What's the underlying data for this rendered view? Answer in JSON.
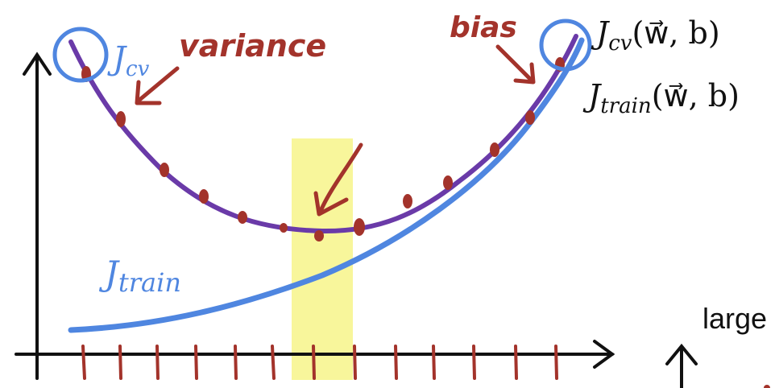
{
  "labels": {
    "jcv_marker": "J",
    "jcv_marker_sub": "cv",
    "variance": "variance",
    "bias": "bias",
    "jcv_full_base": "J",
    "jcv_full_sub": "cv",
    "jcv_full_args": "(w⃗, b)",
    "jtrain_full_base": "J",
    "jtrain_full_sub": "train",
    "jtrain_full_args": "(w⃗, b)",
    "jtrain_marker": "J",
    "jtrain_marker_sub": "train",
    "large_text": "large"
  },
  "colors": {
    "cv_curve": "#6a3aa8",
    "cv_dots": "#a3332b",
    "train_curve": "#4f86e0",
    "highlight": "#f7f58a",
    "axis": "#111111",
    "annotation_red": "#a3332b",
    "annotation_blue": "#4f86e0"
  },
  "icons": {
    "up_arrow": "up-arrow-icon"
  }
}
